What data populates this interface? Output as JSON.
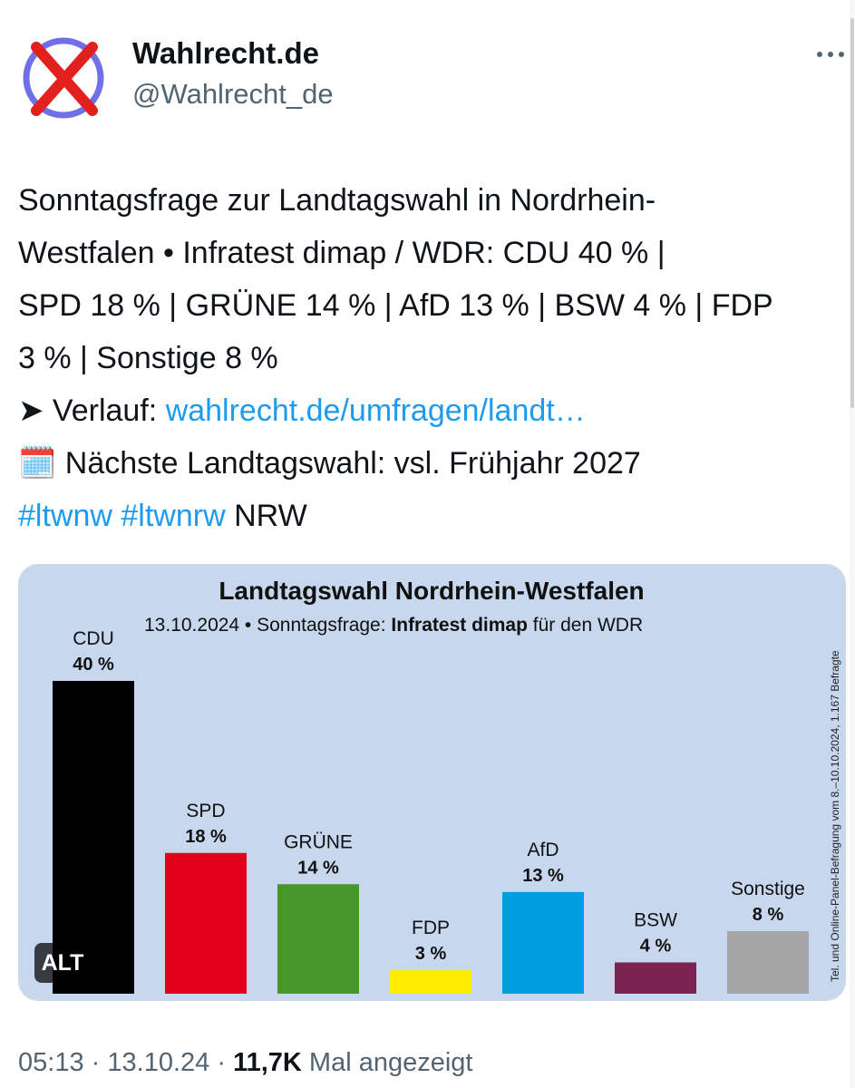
{
  "tweet": {
    "author_name": "Wahlrecht.de",
    "author_handle": "@Wahlrecht_de",
    "line1": "Sonntagsfrage zur Landtagswahl in Nordrhein-",
    "line2": "Westfalen • Infratest dimap / WDR: CDU 40 % |",
    "line3": "SPD 18 % | GRÜNE 14 % | AfD 13 % | BSW 4 % | FDP",
    "line4": "3 % | Sonstige 8 %",
    "verlauf_prefix": "➤ Verlauf: ",
    "verlauf_link": "wahlrecht.de/umfragen/landt…",
    "next_election": "🗓️ Nächste Landtagswahl: vsl. Frühjahr 2027",
    "hashtag1": "#ltwnw",
    "hashtag2": "#ltwnrw",
    "tag_suffix": "NRW",
    "alt_label": "ALT",
    "time": "05:13",
    "date": "13.10.24",
    "views": "11,7K",
    "views_label": "Mal angezeigt",
    "separator": "·"
  },
  "chart_data": {
    "type": "bar",
    "title": "Landtagswahl Nordrhein-Westfalen",
    "subtitle_prefix": "13.10.2024 • Sonntagsfrage: ",
    "subtitle_bold": "Infratest dimap",
    "subtitle_suffix": " für den WDR",
    "side_note": "Tel. und Online-Panel-Befragung vom 8.–10.10.2024, 1.167 Befragte",
    "categories": [
      "CDU",
      "SPD",
      "GRÜNE",
      "FDP",
      "AfD",
      "BSW",
      "Sonstige"
    ],
    "values": [
      40,
      18,
      14,
      3,
      13,
      4,
      8
    ],
    "value_labels": [
      "40 %",
      "18 %",
      "14 %",
      "3 %",
      "13 %",
      "4 %",
      "8 %"
    ],
    "colors": [
      "#000000",
      "#e3001b",
      "#46962b",
      "#ffed00",
      "#009ee0",
      "#7b2450",
      "#a6a6a6"
    ],
    "background": "#c6d7ee",
    "ylim": [
      0,
      40
    ]
  }
}
